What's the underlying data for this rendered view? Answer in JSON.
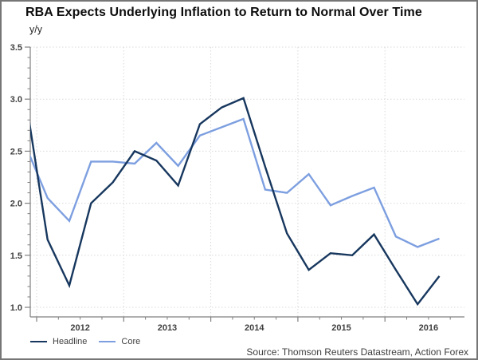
{
  "header": {
    "title": "RBA Expects Underlying Inflation to Return to Normal Over Time",
    "subtitle": "y/y"
  },
  "legend": {
    "items": [
      {
        "label": "Headline",
        "color": "#17375E"
      },
      {
        "label": "Core",
        "color": "#7D9FE0"
      }
    ]
  },
  "footer": {
    "source": "Source: Thomson Reuters Datastream, Action Forex"
  },
  "chart_data": {
    "type": "line",
    "title": "RBA Expects Underlying Inflation to Return to Normal Over Time",
    "ylabel": "y/y",
    "quarters": [
      "2011 Q4",
      "2012 Q1",
      "2012 Q2",
      "2012 Q3",
      "2012 Q4",
      "2013 Q1",
      "2013 Q2",
      "2013 Q3",
      "2013 Q4",
      "2014 Q1",
      "2014 Q2",
      "2014 Q3",
      "2014 Q4",
      "2015 Q1",
      "2015 Q2",
      "2015 Q3",
      "2015 Q4",
      "2016 Q1",
      "2016 Q2",
      "2016 Q3"
    ],
    "x": [
      2011.875,
      2012.125,
      2012.375,
      2012.625,
      2012.875,
      2013.125,
      2013.375,
      2013.625,
      2013.875,
      2014.125,
      2014.375,
      2014.625,
      2014.875,
      2015.125,
      2015.375,
      2015.625,
      2015.875,
      2016.125,
      2016.375,
      2016.625
    ],
    "series": [
      {
        "name": "Headline",
        "color": "#17375E",
        "values": [
          3.0,
          1.65,
          1.21,
          2.0,
          2.2,
          2.5,
          2.41,
          2.17,
          2.76,
          2.92,
          3.01,
          2.35,
          1.71,
          1.36,
          1.52,
          1.5,
          1.7,
          1.36,
          1.03,
          1.3
        ]
      },
      {
        "name": "Core",
        "color": "#7D9FE0",
        "values": [
          2.55,
          2.05,
          1.83,
          2.4,
          2.4,
          2.38,
          2.58,
          2.36,
          2.65,
          2.73,
          2.81,
          2.13,
          2.1,
          2.28,
          1.98,
          2.07,
          2.15,
          1.68,
          1.58,
          1.66
        ]
      }
    ],
    "ylim": [
      0.9,
      3.5
    ],
    "yticks": [
      1.0,
      1.5,
      2.0,
      2.5,
      3.0,
      3.5
    ],
    "y_minor_step": 0.1,
    "x_major_ticks": [
      2012,
      2013,
      2014,
      2015,
      2016
    ],
    "x_year_labels": [
      "2012",
      "2013",
      "2014",
      "2015",
      "2016"
    ],
    "x_minor_step": 0.25,
    "xlim": [
      2011.93,
      2016.91
    ],
    "grid": "dotted",
    "legend_position": "bottom-left",
    "axis_color": "#808080",
    "grid_color": "#D9D9D9",
    "tick_label_color": "#3F3F3F"
  }
}
